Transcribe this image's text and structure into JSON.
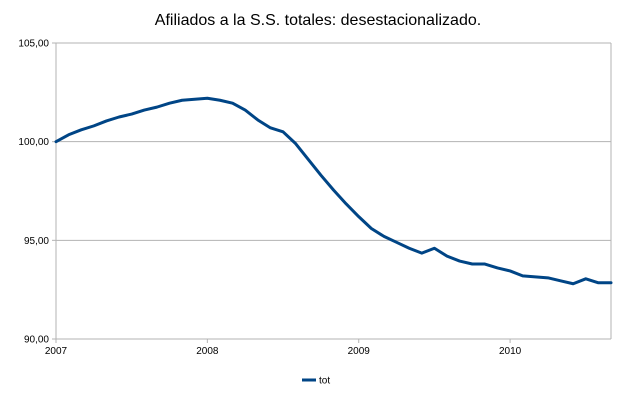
{
  "chart_data": {
    "type": "line",
    "title": "Afiliados a la S.S. totales: desestacionalizado.",
    "xlabel": "",
    "ylabel": "",
    "x_ticks": [
      "2007",
      "2008",
      "2009",
      "2010"
    ],
    "y_ticks": [
      "105,00",
      "100,00",
      "95,00",
      "90,00"
    ],
    "ylim": [
      90,
      105
    ],
    "xlim": [
      0,
      44
    ],
    "grid": "horizontal",
    "legend_position": "bottom-center",
    "series": [
      {
        "name": "tot",
        "color": "#004586",
        "x": [
          0,
          1,
          2,
          3,
          4,
          5,
          6,
          7,
          8,
          9,
          10,
          11,
          12,
          13,
          14,
          15,
          16,
          17,
          18,
          19,
          20,
          21,
          22,
          23,
          24,
          25,
          26,
          27,
          28,
          29,
          30,
          31,
          32,
          33,
          34,
          35,
          36,
          37,
          38,
          39,
          40,
          41,
          42,
          43,
          44
        ],
        "values": [
          100.0,
          100.35,
          100.6,
          100.8,
          101.05,
          101.25,
          101.4,
          101.6,
          101.75,
          101.95,
          102.1,
          102.15,
          102.2,
          102.1,
          101.95,
          101.6,
          101.1,
          100.7,
          100.5,
          99.9,
          99.1,
          98.3,
          97.55,
          96.85,
          96.2,
          95.6,
          95.2,
          94.9,
          94.6,
          94.35,
          94.6,
          94.2,
          93.95,
          93.8,
          93.8,
          93.6,
          93.45,
          93.2,
          93.15,
          93.1,
          92.95,
          92.8,
          93.05,
          92.85,
          92.85
        ]
      }
    ]
  }
}
